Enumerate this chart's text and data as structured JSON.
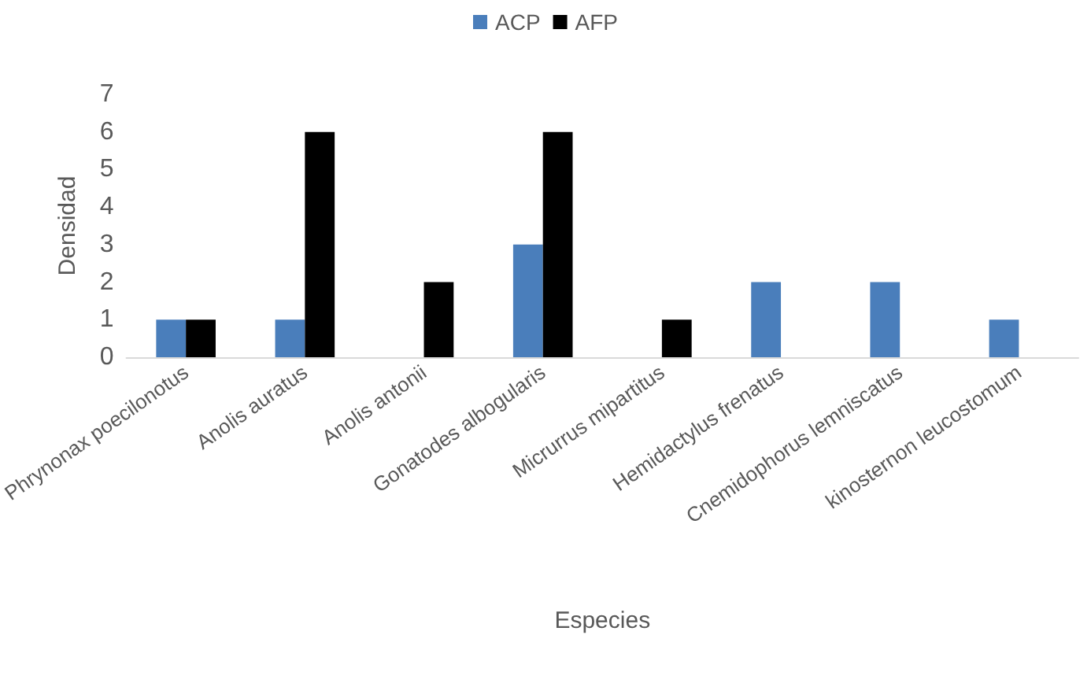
{
  "chart_data": {
    "type": "bar",
    "xlabel": "Especies",
    "ylabel": "Densidad",
    "categories": [
      "Phrynonax poecilonotus",
      "Anolis auratus",
      "Anolis antonii",
      "Gonatodes albogularis",
      "Micrurrus mipartitus",
      "Hemidactylus frenatus",
      "Cnemidophorus lemniscatus",
      "kinosternon leucostomum"
    ],
    "series": [
      {
        "name": "ACP",
        "color": "#4a7ebb",
        "values": [
          1,
          1,
          null,
          3,
          null,
          2,
          2,
          1
        ]
      },
      {
        "name": "AFP",
        "color": "#000000",
        "values": [
          1,
          6,
          2,
          6,
          1,
          null,
          null,
          null
        ]
      }
    ],
    "ylim": [
      0,
      7
    ],
    "yticks": [
      0,
      1,
      2,
      3,
      4,
      5,
      6,
      7
    ],
    "grid": false,
    "legend": "top"
  }
}
